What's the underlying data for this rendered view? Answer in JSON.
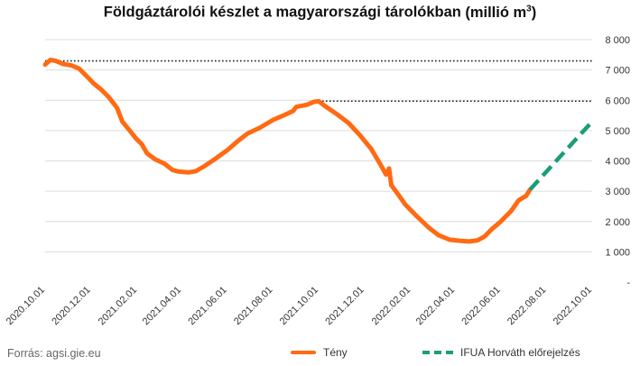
{
  "chart_data": {
    "type": "line",
    "title": "Földgáztárolói készlet a magyarországi tárolókban",
    "title_unit_prefix": "(millió m",
    "title_unit_sup": "3",
    "title_unit_suffix": ")",
    "ylim": [
      0,
      8000
    ],
    "y_ticks": [
      "-",
      "1 000",
      "2 000",
      "3 000",
      "4 000",
      "5 000",
      "6 000",
      "7 000",
      "8 000"
    ],
    "x_range": [
      "2020-10-01",
      "2022-10-01"
    ],
    "x_ticks": [
      "2020.10.01",
      "2020.12.01",
      "2021.02.01",
      "2021.04.01",
      "2021.06.01",
      "2021.08.01",
      "2021.10.01",
      "2021.12.01",
      "2022.02.01",
      "2022.04.01",
      "2022.06.01",
      "2022.08.01",
      "2022.10.01"
    ],
    "grid": true,
    "legend_position": "bottom",
    "reference_lines": [
      {
        "value": 7300,
        "x_start": "2020-10-01",
        "x_end": "2022-10-01",
        "style": "dotted"
      },
      {
        "value": 5970,
        "x_start": "2021-10-01",
        "x_end": "2022-10-01",
        "style": "dotted"
      }
    ],
    "series": [
      {
        "name": "Tény",
        "color": "#ff6a13",
        "style": "solid",
        "points": [
          [
            "2020-10-01",
            7180
          ],
          [
            "2020-10-08",
            7330
          ],
          [
            "2020-10-15",
            7300
          ],
          [
            "2020-10-25",
            7200
          ],
          [
            "2020-11-05",
            7150
          ],
          [
            "2020-11-15",
            7050
          ],
          [
            "2020-11-25",
            6800
          ],
          [
            "2020-12-05",
            6550
          ],
          [
            "2020-12-15",
            6350
          ],
          [
            "2020-12-25",
            6100
          ],
          [
            "2021-01-05",
            5750
          ],
          [
            "2021-01-12",
            5300
          ],
          [
            "2021-01-22",
            5000
          ],
          [
            "2021-01-30",
            4750
          ],
          [
            "2021-02-07",
            4550
          ],
          [
            "2021-02-14",
            4250
          ],
          [
            "2021-02-25",
            4050
          ],
          [
            "2021-03-10",
            3900
          ],
          [
            "2021-03-20",
            3700
          ],
          [
            "2021-03-28",
            3650
          ],
          [
            "2021-04-10",
            3620
          ],
          [
            "2021-04-20",
            3660
          ],
          [
            "2021-05-01",
            3820
          ],
          [
            "2021-05-15",
            4050
          ],
          [
            "2021-06-01",
            4350
          ],
          [
            "2021-06-15",
            4650
          ],
          [
            "2021-06-28",
            4900
          ],
          [
            "2021-07-15",
            5100
          ],
          [
            "2021-08-01",
            5350
          ],
          [
            "2021-08-15",
            5500
          ],
          [
            "2021-08-28",
            5650
          ],
          [
            "2021-09-01",
            5780
          ],
          [
            "2021-09-15",
            5850
          ],
          [
            "2021-09-25",
            5950
          ],
          [
            "2021-10-01",
            5970
          ],
          [
            "2021-10-10",
            5800
          ],
          [
            "2021-10-25",
            5550
          ],
          [
            "2021-11-10",
            5250
          ],
          [
            "2021-11-25",
            4850
          ],
          [
            "2021-12-10",
            4400
          ],
          [
            "2021-12-22",
            3900
          ],
          [
            "2021-12-30",
            3550
          ],
          [
            "2022-01-03",
            3750
          ],
          [
            "2022-01-06",
            3200
          ],
          [
            "2022-01-12",
            3000
          ],
          [
            "2022-01-25",
            2550
          ],
          [
            "2022-02-10",
            2150
          ],
          [
            "2022-02-25",
            1800
          ],
          [
            "2022-03-10",
            1550
          ],
          [
            "2022-03-25",
            1400
          ],
          [
            "2022-04-05",
            1370
          ],
          [
            "2022-04-20",
            1340
          ],
          [
            "2022-05-01",
            1380
          ],
          [
            "2022-05-10",
            1500
          ],
          [
            "2022-05-20",
            1750
          ],
          [
            "2022-06-01",
            2000
          ],
          [
            "2022-06-15",
            2350
          ],
          [
            "2022-06-25",
            2700
          ],
          [
            "2022-07-05",
            2850
          ],
          [
            "2022-07-10",
            3050
          ]
        ]
      },
      {
        "name": "IFUA Horváth előrejelzés",
        "color": "#1a9e77",
        "style": "dashed",
        "points": [
          [
            "2022-07-10",
            3050
          ],
          [
            "2022-10-01",
            5300
          ]
        ]
      }
    ],
    "source": "Forrás: agsi.gie.eu"
  }
}
